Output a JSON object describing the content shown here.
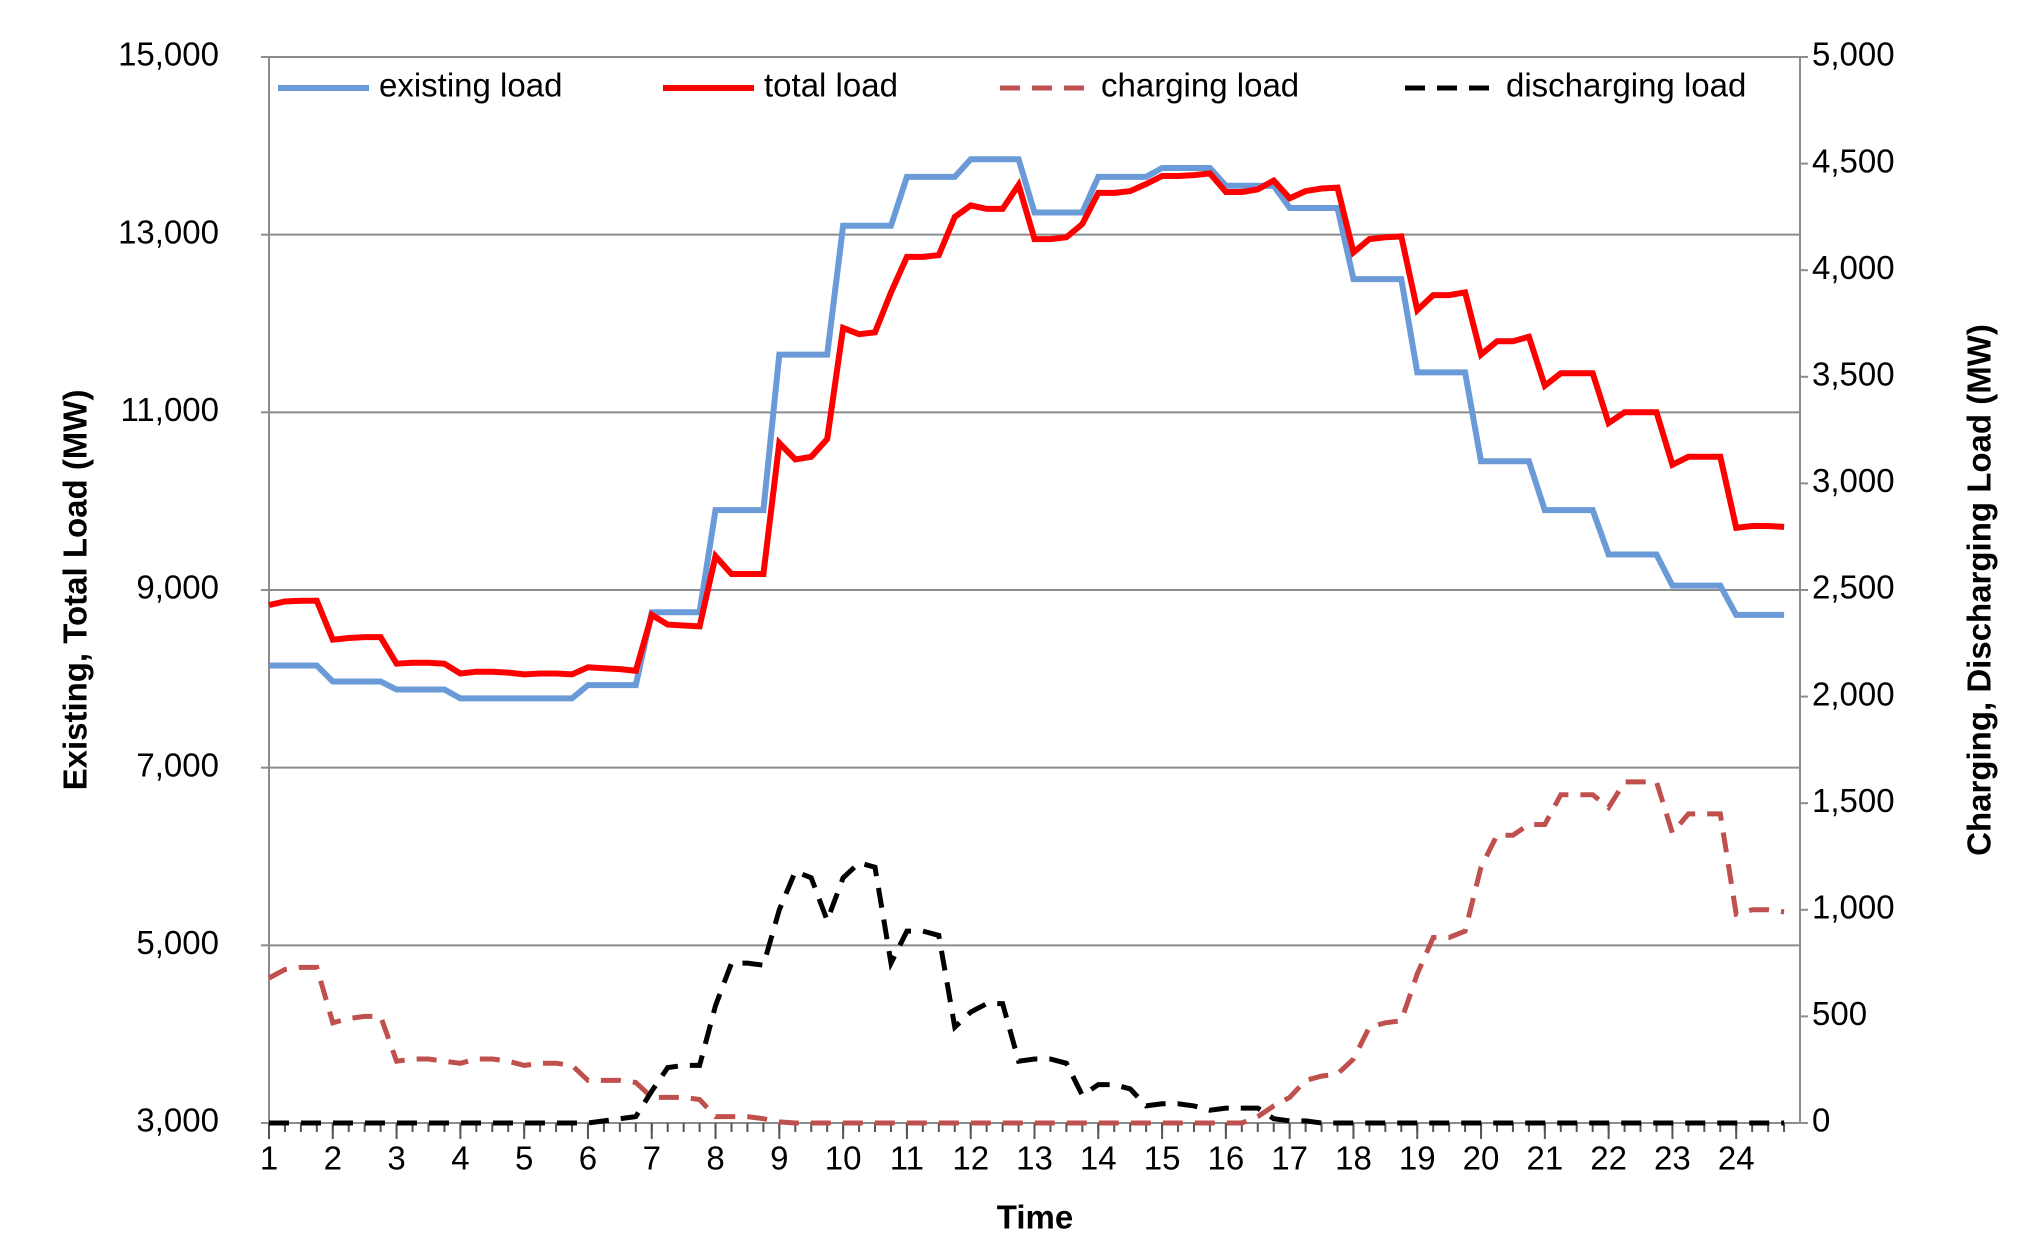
{
  "chart_data": {
    "type": "line",
    "xlabel": "Time",
    "ylabel": "Existing, Total Load (MW)",
    "y2label": "Charging, Discharging Load (MW)",
    "x": [
      1,
      1.25,
      1.5,
      1.75,
      2,
      2.25,
      2.5,
      2.75,
      3,
      3.25,
      3.5,
      3.75,
      4,
      4.25,
      4.5,
      4.75,
      5,
      5.25,
      5.5,
      5.75,
      6,
      6.25,
      6.5,
      6.75,
      7,
      7.25,
      7.5,
      7.75,
      8,
      8.25,
      8.5,
      8.75,
      9,
      9.25,
      9.5,
      9.75,
      10,
      10.25,
      10.5,
      10.75,
      11,
      11.25,
      11.5,
      11.75,
      12,
      12.25,
      12.5,
      12.75,
      13,
      13.25,
      13.5,
      13.75,
      14,
      14.25,
      14.5,
      14.75,
      15,
      15.25,
      15.5,
      15.75,
      16,
      16.25,
      16.5,
      16.75,
      17,
      17.25,
      17.5,
      17.75,
      18,
      18.25,
      18.5,
      18.75,
      19,
      19.25,
      19.5,
      19.75,
      20,
      20.25,
      20.5,
      20.75,
      21,
      21.25,
      21.5,
      21.75,
      22,
      22.25,
      22.5,
      22.75,
      23,
      23.25,
      23.5,
      23.75,
      24,
      24.25,
      24.5,
      24.75
    ],
    "xlim": [
      1,
      25
    ],
    "xticks": [
      1,
      2,
      3,
      4,
      5,
      6,
      7,
      8,
      9,
      10,
      11,
      12,
      13,
      14,
      15,
      16,
      17,
      18,
      19,
      20,
      21,
      22,
      23,
      24
    ],
    "ylim": [
      3000,
      15000
    ],
    "yticks": [
      {
        "value": 3000,
        "label": "3,000"
      },
      {
        "value": 5000,
        "label": "5,000"
      },
      {
        "value": 7000,
        "label": "7,000"
      },
      {
        "value": 9000,
        "label": "9,000"
      },
      {
        "value": 11000,
        "label": "11,000"
      },
      {
        "value": 13000,
        "label": "13,000"
      },
      {
        "value": 15000,
        "label": "15,000"
      }
    ],
    "y2lim": [
      0,
      5000
    ],
    "y2ticks": [
      0,
      500,
      {
        "value": 1000,
        "label": "1,000"
      },
      {
        "value": 1500,
        "label": "1,500"
      },
      {
        "value": 2000,
        "label": "2,000"
      },
      {
        "value": 2500,
        "label": "2,500"
      },
      {
        "value": 3000,
        "label": "3,000"
      },
      {
        "value": 3500,
        "label": "3,500"
      },
      {
        "value": 4000,
        "label": "4,000"
      },
      {
        "value": 4500,
        "label": "4,500"
      },
      {
        "value": 5000,
        "label": "5,000"
      }
    ],
    "grid": true,
    "legend": "top",
    "series": [
      {
        "name": "existing load",
        "color": "#6a9bd8",
        "dashed": false,
        "axis": "y",
        "values": [
          8150,
          8150,
          8150,
          8150,
          7970,
          7970,
          7970,
          7970,
          7880,
          7880,
          7880,
          7880,
          7780,
          7780,
          7780,
          7780,
          7780,
          7780,
          7780,
          7780,
          7930,
          7930,
          7930,
          7930,
          8750,
          8750,
          8750,
          8750,
          9900,
          9900,
          9900,
          9900,
          11650,
          11650,
          11650,
          11650,
          13100,
          13100,
          13100,
          13100,
          13650,
          13650,
          13650,
          13650,
          13850,
          13850,
          13850,
          13850,
          13250,
          13250,
          13250,
          13250,
          13650,
          13650,
          13650,
          13650,
          13750,
          13750,
          13750,
          13750,
          13550,
          13550,
          13550,
          13550,
          13300,
          13300,
          13300,
          13300,
          12500,
          12500,
          12500,
          12500,
          11450,
          11450,
          11450,
          11450,
          10450,
          10450,
          10450,
          10450,
          9900,
          9900,
          9900,
          9900,
          9400,
          9400,
          9400,
          9400,
          9050,
          9050,
          9050,
          9050,
          8720,
          8720,
          8720,
          8720
        ]
      },
      {
        "name": "total load",
        "color": "#ff0000",
        "dashed": false,
        "axis": "y",
        "values": [
          8830,
          8870,
          8880,
          8880,
          8440,
          8460,
          8470,
          8470,
          8170,
          8180,
          8180,
          8170,
          8060,
          8080,
          8080,
          8070,
          8050,
          8060,
          8060,
          8050,
          8130,
          8120,
          8110,
          8090,
          8720,
          8610,
          8600,
          8590,
          9380,
          9180,
          9180,
          9180,
          10655,
          10470,
          10500,
          10700,
          11950,
          11880,
          11900,
          12350,
          12750,
          12750,
          12770,
          13200,
          13330,
          13290,
          13290,
          13560,
          12950,
          12950,
          12970,
          13120,
          13470,
          13470,
          13490,
          13570,
          13660,
          13660,
          13670,
          13690,
          13480,
          13480,
          13510,
          13610,
          13410,
          13490,
          13520,
          13530,
          12800,
          12950,
          12970,
          12980,
          12150,
          12320,
          12320,
          12350,
          11650,
          11800,
          11800,
          11850,
          11300,
          11440,
          11440,
          11440,
          10880,
          11000,
          11000,
          11000,
          10410,
          10500,
          10500,
          10500,
          9700,
          9720,
          9720,
          9710
        ]
      },
      {
        "name": "charging load",
        "color": "#c0504d",
        "dashed": true,
        "axis": "y2",
        "values": [
          680,
          720,
          730,
          730,
          470,
          490,
          500,
          500,
          290,
          300,
          300,
          290,
          280,
          300,
          300,
          290,
          270,
          280,
          280,
          270,
          200,
          200,
          200,
          190,
          120,
          120,
          120,
          110,
          30,
          30,
          30,
          20,
          5,
          0,
          0,
          0,
          0,
          0,
          0,
          0,
          0,
          0,
          0,
          0,
          0,
          0,
          0,
          0,
          0,
          0,
          0,
          0,
          0,
          0,
          0,
          0,
          0,
          0,
          0,
          0,
          0,
          0,
          30,
          80,
          120,
          200,
          220,
          230,
          300,
          450,
          470,
          480,
          700,
          870,
          870,
          900,
          1200,
          1350,
          1350,
          1400,
          1400,
          1540,
          1540,
          1540,
          1480,
          1600,
          1600,
          1600,
          1360,
          1450,
          1450,
          1450,
          980,
          1000,
          1000,
          990
        ]
      },
      {
        "name": "discharging load",
        "color": "#000000",
        "dashed": true,
        "axis": "y2",
        "values": [
          0,
          0,
          0,
          0,
          0,
          0,
          0,
          0,
          0,
          0,
          0,
          0,
          0,
          0,
          0,
          0,
          0,
          0,
          0,
          0,
          0,
          10,
          20,
          30,
          150,
          260,
          270,
          270,
          550,
          750,
          750,
          740,
          1000,
          1180,
          1150,
          950,
          1150,
          1220,
          1200,
          750,
          900,
          900,
          880,
          450,
          520,
          560,
          560,
          290,
          300,
          300,
          280,
          130,
          180,
          180,
          160,
          80,
          90,
          90,
          80,
          60,
          70,
          70,
          70,
          20,
          10,
          10,
          0,
          0,
          0,
          0,
          0,
          0,
          0,
          0,
          0,
          0,
          0,
          0,
          0,
          0,
          0,
          0,
          0,
          0,
          0,
          0,
          0,
          0,
          0,
          0,
          0,
          0,
          0,
          0,
          0,
          0
        ]
      }
    ]
  }
}
